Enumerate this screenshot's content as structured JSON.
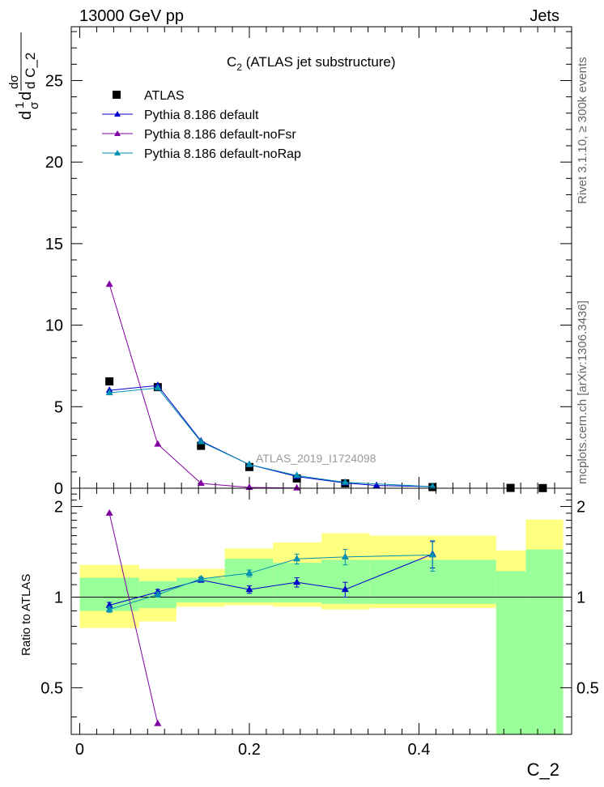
{
  "header": {
    "left": "13000 GeV pp",
    "right": "Jets"
  },
  "side_labels": {
    "rivet": "Rivet 3.1.10, ≥ 300k events",
    "mcplots": "mcplots.cern.ch [arXiv:1306.3436]"
  },
  "chart_data": [
    {
      "panel": "main",
      "type": "scatter",
      "title_main": "C",
      "title_sub": "2",
      "title_rest": " (ATLAS jet substructure)",
      "ylabel_parts": [
        "d",
        "1",
        "σ",
        "d",
        "dσ",
        "d C_2"
      ],
      "watermark": "ATLAS_2019_I1724098",
      "xlim": [
        -0.01,
        0.58
      ],
      "ylim": [
        0,
        28.3
      ],
      "yticks": [
        0,
        5,
        10,
        15,
        20,
        25
      ],
      "ytick_labels": [
        "0",
        "5",
        "10",
        "15",
        "20",
        "25"
      ],
      "legend_position": "top-left",
      "series": [
        {
          "name": "ATLAS",
          "color": "#000000",
          "marker": "square",
          "x": [
            0.035,
            0.092,
            0.143,
            0.2,
            0.256,
            0.313,
            0.416,
            0.508,
            0.546
          ],
          "y": [
            6.55,
            6.2,
            2.6,
            1.3,
            0.6,
            0.3,
            0.07,
            0.02,
            0.01
          ]
        },
        {
          "name": "Pythia 8.186 default",
          "color": "#0000cc",
          "marker": "triangle",
          "x": [
            0.035,
            0.092,
            0.143,
            0.2,
            0.256,
            0.313,
            0.35,
            0.416
          ],
          "y": [
            6.0,
            6.3,
            2.9,
            1.45,
            0.72,
            0.32,
            0.17,
            0.1
          ]
        },
        {
          "name": "Pythia 8.186 default-noFsr",
          "color": "#8000a0",
          "marker": "triangle",
          "x": [
            0.035,
            0.092,
            0.143,
            0.2,
            0.256
          ],
          "y": [
            12.5,
            2.7,
            0.3,
            0.05,
            0.01
          ]
        },
        {
          "name": "Pythia 8.186 default-noRap",
          "color": "#0090b0",
          "marker": "triangle",
          "x": [
            0.035,
            0.092,
            0.143,
            0.2,
            0.256,
            0.313,
            0.416
          ],
          "y": [
            5.85,
            6.15,
            2.85,
            1.45,
            0.78,
            0.36,
            0.1
          ]
        }
      ]
    },
    {
      "panel": "ratio",
      "type": "scatter",
      "ylabel": "Ratio to ATLAS",
      "xlabel": "C_2",
      "xlim": [
        -0.01,
        0.58
      ],
      "ylim": [
        0.35,
        2.3
      ],
      "yticks": [
        0.5,
        1,
        2
      ],
      "ytick_labels_left": [
        "0.5",
        "1",
        "2"
      ],
      "ytick_labels_right": [
        "0.5",
        "1",
        "2"
      ],
      "xticks": [
        0,
        0.2,
        0.4
      ],
      "xtick_labels": [
        "0",
        "0.2",
        "0.4"
      ],
      "reference_line": 1,
      "bands": [
        {
          "x0": 0.0,
          "x1": 0.07,
          "yellow": [
            0.79,
            1.28
          ],
          "green": [
            0.9,
            1.16
          ]
        },
        {
          "x0": 0.07,
          "x1": 0.114,
          "yellow": [
            0.83,
            1.24
          ],
          "green": [
            0.92,
            1.13
          ]
        },
        {
          "x0": 0.114,
          "x1": 0.171,
          "yellow": [
            0.93,
            1.24
          ],
          "green": [
            0.96,
            1.16
          ]
        },
        {
          "x0": 0.171,
          "x1": 0.228,
          "yellow": [
            0.94,
            1.45
          ],
          "green": [
            0.96,
            1.34
          ]
        },
        {
          "x0": 0.228,
          "x1": 0.285,
          "yellow": [
            0.93,
            1.52
          ],
          "green": [
            0.96,
            1.3
          ]
        },
        {
          "x0": 0.285,
          "x1": 0.342,
          "yellow": [
            0.91,
            1.63
          ],
          "green": [
            0.95,
            1.33
          ]
        },
        {
          "x0": 0.342,
          "x1": 0.491,
          "yellow": [
            0.92,
            1.6
          ],
          "green": [
            0.95,
            1.33
          ]
        },
        {
          "x0": 0.491,
          "x1": 0.526,
          "yellow": [
            0.0,
            1.43
          ],
          "green": [
            0.0,
            1.22
          ]
        },
        {
          "x0": 0.526,
          "x1": 0.57,
          "yellow": [
            0.0,
            1.81
          ],
          "green": [
            0.0,
            1.44
          ]
        }
      ],
      "series": [
        {
          "name": "Pythia 8.186 default",
          "color": "#0000cc",
          "x": [
            0.035,
            0.092,
            0.143,
            0.2,
            0.256,
            0.313,
            0.416
          ],
          "y": [
            0.94,
            1.04,
            1.14,
            1.06,
            1.12,
            1.06,
            1.39
          ],
          "err": [
            0.02,
            0.02,
            0.02,
            0.03,
            0.04,
            0.06,
            0.14
          ]
        },
        {
          "name": "Pythia 8.186 default-noFsr",
          "color": "#8000a0",
          "x": [
            0.035,
            0.092
          ],
          "y": [
            1.9,
            0.38
          ],
          "err": [
            0,
            0
          ]
        },
        {
          "name": "Pythia 8.186 default-noRap",
          "color": "#0090b0",
          "x": [
            0.035,
            0.092,
            0.143,
            0.2,
            0.256,
            0.313,
            0.416
          ],
          "y": [
            0.91,
            1.02,
            1.15,
            1.2,
            1.34,
            1.36,
            1.38
          ],
          "err": [
            0.02,
            0.02,
            0.02,
            0.03,
            0.05,
            0.08,
            0.16
          ]
        }
      ]
    }
  ]
}
